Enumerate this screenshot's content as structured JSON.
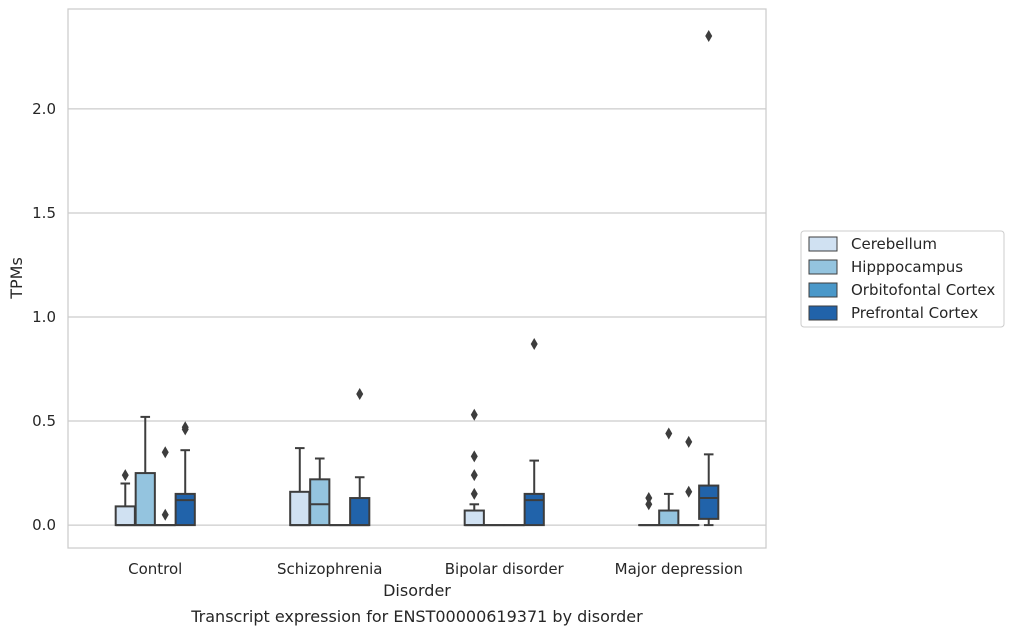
{
  "caption": "Transcript expression for ENST00000619371 by disorder",
  "chart_data": {
    "type": "box",
    "xlabel": "Disorder",
    "ylabel": "TPMs",
    "ylim": [
      -0.11,
      2.48
    ],
    "yticks": [
      "0.0",
      "0.5",
      "1.0",
      "1.5",
      "2.0"
    ],
    "grid": "horizontal",
    "legend_position": "right",
    "categories": [
      "Control",
      "Schizophrenia",
      "Bipolar disorder",
      "Major depression"
    ],
    "series": [
      {
        "name": "Cerebellum",
        "color": "#d0e1f2",
        "boxes": [
          {
            "low": 0.0,
            "q1": 0.0,
            "median": 0.0,
            "q3": 0.09,
            "high": 0.2,
            "fliers": [
              0.24
            ]
          },
          {
            "low": 0.0,
            "q1": 0.0,
            "median": 0.0,
            "q3": 0.16,
            "high": 0.37,
            "fliers": []
          },
          {
            "low": 0.0,
            "q1": 0.0,
            "median": 0.0,
            "q3": 0.07,
            "high": 0.1,
            "fliers": [
              0.15,
              0.24,
              0.33,
              0.53
            ]
          },
          {
            "low": 0.0,
            "q1": 0.0,
            "median": 0.0,
            "q3": 0.0,
            "high": 0.0,
            "fliers": [
              0.1,
              0.13
            ]
          }
        ]
      },
      {
        "name": "Hipppocampus",
        "color": "#94c4df",
        "boxes": [
          {
            "low": 0.0,
            "q1": 0.0,
            "median": 0.0,
            "q3": 0.25,
            "high": 0.52,
            "fliers": []
          },
          {
            "low": 0.0,
            "q1": 0.0,
            "median": 0.1,
            "q3": 0.22,
            "high": 0.32,
            "fliers": []
          },
          {
            "low": 0.0,
            "q1": 0.0,
            "median": 0.0,
            "q3": 0.0,
            "high": 0.0,
            "fliers": []
          },
          {
            "low": 0.0,
            "q1": 0.0,
            "median": 0.0,
            "q3": 0.07,
            "high": 0.15,
            "fliers": [
              0.44
            ]
          }
        ]
      },
      {
        "name": "Orbitofontal Cortex",
        "color": "#4a98c9",
        "boxes": [
          {
            "low": 0.0,
            "q1": 0.0,
            "median": 0.0,
            "q3": 0.0,
            "high": 0.0,
            "fliers": [
              0.05,
              0.35
            ]
          },
          {
            "low": 0.0,
            "q1": 0.0,
            "median": 0.0,
            "q3": 0.0,
            "high": 0.0,
            "fliers": []
          },
          {
            "low": 0.0,
            "q1": 0.0,
            "median": 0.0,
            "q3": 0.0,
            "high": 0.0,
            "fliers": []
          },
          {
            "low": 0.0,
            "q1": 0.0,
            "median": 0.0,
            "q3": 0.0,
            "high": 0.0,
            "fliers": [
              0.16,
              0.4
            ]
          }
        ]
      },
      {
        "name": "Prefrontal Cortex",
        "color": "#2163aa",
        "boxes": [
          {
            "low": 0.0,
            "q1": 0.0,
            "median": 0.12,
            "q3": 0.15,
            "high": 0.36,
            "fliers": [
              0.46,
              0.47
            ]
          },
          {
            "low": 0.0,
            "q1": 0.0,
            "median": 0.0,
            "q3": 0.13,
            "high": 0.23,
            "fliers": [
              0.63
            ]
          },
          {
            "low": 0.0,
            "q1": 0.0,
            "median": 0.12,
            "q3": 0.15,
            "high": 0.31,
            "fliers": [
              0.87
            ]
          },
          {
            "low": 0.0,
            "q1": 0.03,
            "median": 0.13,
            "q3": 0.19,
            "high": 0.34,
            "fliers": [
              2.35
            ]
          }
        ]
      }
    ]
  }
}
